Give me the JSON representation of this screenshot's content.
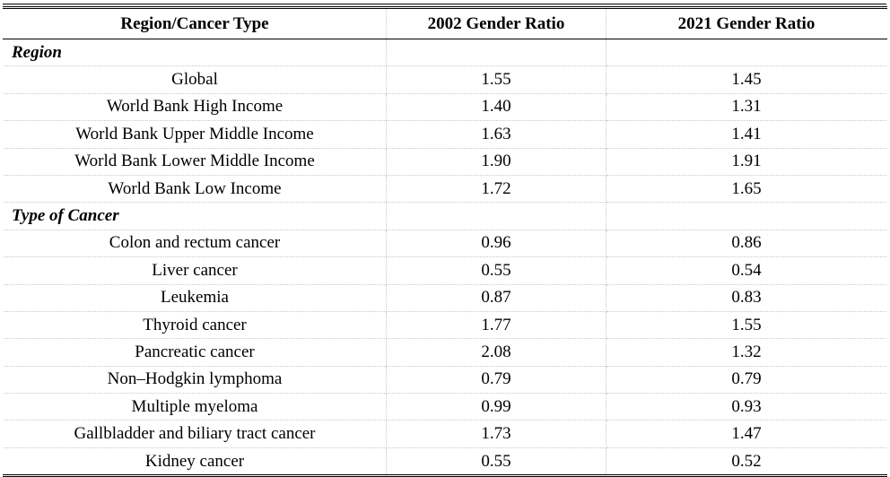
{
  "table": {
    "headers": [
      "Region/Cancer Type",
      "2002 Gender Ratio",
      "2021 Gender Ratio"
    ],
    "sections": [
      {
        "title": "Region",
        "rows": [
          {
            "label": "Global",
            "v2002": "1.55",
            "v2021": "1.45"
          },
          {
            "label": "World Bank High Income",
            "v2002": "1.40",
            "v2021": "1.31"
          },
          {
            "label": "World Bank Upper Middle Income",
            "v2002": "1.63",
            "v2021": "1.41"
          },
          {
            "label": "World Bank Lower Middle Income",
            "v2002": "1.90",
            "v2021": "1.91"
          },
          {
            "label": "World Bank Low Income",
            "v2002": "1.72",
            "v2021": "1.65"
          }
        ]
      },
      {
        "title": "Type of Cancer",
        "rows": [
          {
            "label": "Colon and rectum cancer",
            "v2002": "0.96",
            "v2021": "0.86"
          },
          {
            "label": "Liver cancer",
            "v2002": "0.55",
            "v2021": "0.54"
          },
          {
            "label": "Leukemia",
            "v2002": "0.87",
            "v2021": "0.83"
          },
          {
            "label": "Thyroid cancer",
            "v2002": "1.77",
            "v2021": "1.55"
          },
          {
            "label": "Pancreatic cancer",
            "v2002": "2.08",
            "v2021": "1.32"
          },
          {
            "label": "Non–Hodgkin lymphoma",
            "v2002": "0.79",
            "v2021": "0.79"
          },
          {
            "label": "Multiple myeloma",
            "v2002": "0.99",
            "v2021": "0.93"
          },
          {
            "label": "Gallbladder and biliary tract cancer",
            "v2002": "1.73",
            "v2021": "1.47"
          },
          {
            "label": "Kidney cancer",
            "v2002": "0.55",
            "v2021": "0.52"
          }
        ]
      }
    ]
  }
}
